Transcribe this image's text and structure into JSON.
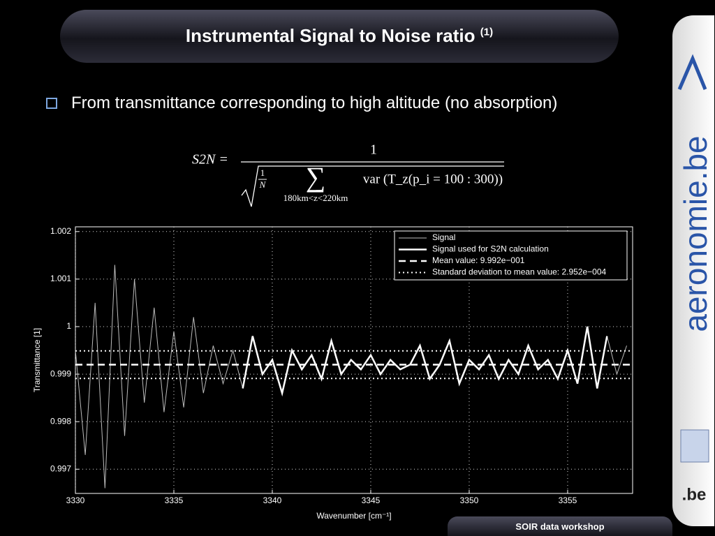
{
  "slide": {
    "title": "Instrumental Signal to Noise ratio",
    "title_note": "(1)",
    "bullet": "From transmittance corresponding to high altitude (no absorption)",
    "formula": {
      "lhs": "S2N =",
      "numerator": "1",
      "inner_num": "1",
      "inner_den": "N",
      "sum": "∑",
      "sum_range": "180km<z<220km",
      "term": "var (T_z(p_i = 100 : 300))"
    },
    "brand": "aeronomie.be",
    "brand_small": ".be",
    "footer": "SOIR data workshop"
  },
  "chart_data": {
    "type": "line",
    "x_label": "Wavenumber [cm⁻¹]",
    "y_label": "Transmittance [1]",
    "xlim": [
      3330,
      3358.3
    ],
    "ylim": [
      0.99649,
      1.0021
    ],
    "xticks": [
      3330,
      3335,
      3340,
      3345,
      3350,
      3355
    ],
    "yticks": [
      0.997,
      0.998,
      0.999,
      1,
      1.001,
      1.002
    ],
    "grid": true,
    "legend": "upper right",
    "series": [
      {
        "name": "Signal",
        "color": "#bbbbbb",
        "style": "thin",
        "x": [
          3330,
          3330.5,
          3331,
          3331.5,
          3332,
          3332.5,
          3333,
          3333.5,
          3334,
          3334.5,
          3335,
          3335.5,
          3336,
          3336.5,
          3337,
          3337.5,
          3338,
          3338.5,
          3339,
          3339.5,
          3340,
          3340.5,
          3341,
          3341.5,
          3342,
          3342.5,
          3343,
          3343.5,
          3344,
          3344.5,
          3345,
          3345.5,
          3346,
          3346.5,
          3347,
          3347.5,
          3348,
          3348.5,
          3349,
          3349.5,
          3350,
          3350.5,
          3351,
          3351.5,
          3352,
          3352.5,
          3353,
          3353.5,
          3354,
          3354.5,
          3355,
          3355.5,
          3356,
          3356.5,
          3357,
          3357.5,
          3358
        ],
        "values": [
          0.9995,
          0.9973,
          1.0005,
          0.9966,
          1.0013,
          0.9977,
          1.001,
          0.9984,
          1.0004,
          0.9982,
          0.9999,
          0.9983,
          1.0002,
          0.9986,
          0.9996,
          0.9988,
          0.9995,
          0.9987,
          0.9998,
          0.999,
          0.9993,
          0.9986,
          0.9995,
          0.9991,
          0.9994,
          0.9989,
          0.9997,
          0.999,
          0.9993,
          0.9991,
          0.9994,
          0.999,
          0.9993,
          0.9991,
          0.9992,
          0.9996,
          0.9989,
          0.9992,
          0.9997,
          0.9988,
          0.9993,
          0.9991,
          0.9994,
          0.9989,
          0.9993,
          0.999,
          0.9996,
          0.9991,
          0.9993,
          0.9989,
          0.9995,
          0.9988,
          1.0,
          0.9987,
          0.9998,
          0.999,
          0.9996
        ]
      },
      {
        "name": "Signal used for S2N calculation",
        "color": "#ffffff",
        "style": "thick",
        "x": [
          3338.5,
          3339,
          3339.5,
          3340,
          3340.5,
          3341,
          3341.5,
          3342,
          3342.5,
          3343,
          3343.5,
          3344,
          3344.5,
          3345,
          3345.5,
          3346,
          3346.5,
          3347,
          3347.5,
          3348,
          3348.5,
          3349,
          3349.5,
          3350,
          3350.5,
          3351,
          3351.5,
          3352,
          3352.5,
          3353,
          3353.5,
          3354,
          3354.5,
          3355,
          3355.5,
          3356,
          3356.5,
          3357
        ],
        "values": [
          0.9987,
          0.9998,
          0.999,
          0.9993,
          0.9986,
          0.9995,
          0.9991,
          0.9994,
          0.9989,
          0.9997,
          0.999,
          0.9993,
          0.9991,
          0.9994,
          0.999,
          0.9993,
          0.9991,
          0.9992,
          0.9996,
          0.9989,
          0.9992,
          0.9997,
          0.9988,
          0.9993,
          0.9991,
          0.9994,
          0.9989,
          0.9993,
          0.999,
          0.9996,
          0.9991,
          0.9993,
          0.9989,
          0.9995,
          0.9988,
          1.0,
          0.9987,
          0.9998
        ]
      },
      {
        "name": "Mean value: 9.992e−001",
        "color": "#ffffff",
        "style": "dashed",
        "x": [
          3330,
          3358.3
        ],
        "values": [
          0.9992,
          0.9992
        ]
      },
      {
        "name": "Standard deviation to mean value: 2.952e−004",
        "color": "#ffffff",
        "style": "dotted",
        "x": [
          3330,
          3358.3
        ],
        "values": [
          0.99949,
          0.99949
        ],
        "lower_values": [
          0.99891,
          0.99891
        ]
      }
    ]
  }
}
